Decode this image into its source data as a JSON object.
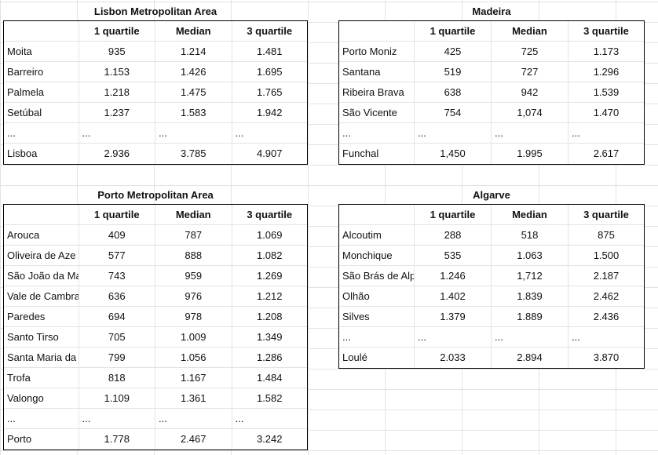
{
  "tables": [
    {
      "title": "Lisbon Metropolitan Area",
      "headers": [
        "",
        "1 quartile",
        "Median",
        "3 quartile"
      ],
      "rows": [
        [
          "Moita",
          "935",
          "1.214",
          "1.481"
        ],
        [
          "Barreiro",
          "1.153",
          "1.426",
          "1.695"
        ],
        [
          "Palmela",
          "1.218",
          "1.475",
          "1.765"
        ],
        [
          "Setúbal",
          "1.237",
          "1.583",
          "1.942"
        ],
        [
          "...",
          "...",
          "...",
          "..."
        ],
        [
          "Lisboa",
          "2.936",
          "3.785",
          "4.907"
        ]
      ]
    },
    {
      "title": "Madeira",
      "headers": [
        "",
        "1 quartile",
        "Median",
        "3 quartile"
      ],
      "rows": [
        [
          "Porto Moniz",
          "425",
          "725",
          "1.173"
        ],
        [
          "Santana",
          "519",
          "727",
          "1.296"
        ],
        [
          "Ribeira Brava",
          "638",
          "942",
          "1.539"
        ],
        [
          "São Vicente",
          "754",
          "1,074",
          "1.470"
        ],
        [
          "...",
          "...",
          "...",
          "..."
        ],
        [
          "Funchal",
          "1,450",
          "1.995",
          "2.617"
        ]
      ]
    },
    {
      "title": "Porto Metropolitan Area",
      "headers": [
        "",
        "1 quartile",
        "Median",
        "3 quartile"
      ],
      "rows": [
        [
          "Arouca",
          "409",
          "787",
          "1.069"
        ],
        [
          "Oliveira de Aze",
          "577",
          "888",
          "1.082"
        ],
        [
          "São João da Ma",
          "743",
          "959",
          "1.269"
        ],
        [
          "Vale de Cambra",
          "636",
          "976",
          "1.212"
        ],
        [
          "Paredes",
          "694",
          "978",
          "1.208"
        ],
        [
          "Santo Tirso",
          "705",
          "1.009",
          "1.349"
        ],
        [
          "Santa Maria da",
          "799",
          "1.056",
          "1.286"
        ],
        [
          "Trofa",
          "818",
          "1.167",
          "1.484"
        ],
        [
          "Valongo",
          "1.109",
          "1.361",
          "1.582"
        ],
        [
          "...",
          "...",
          "...",
          "..."
        ],
        [
          "Porto",
          "1.778",
          "2.467",
          "3.242"
        ]
      ]
    },
    {
      "title": "Algarve",
      "headers": [
        "",
        "1 quartile",
        "Median",
        "3 quartile"
      ],
      "rows": [
        [
          "Alcoutim",
          "288",
          "518",
          "875"
        ],
        [
          "Monchique",
          "535",
          "1.063",
          "1.500"
        ],
        [
          "São Brás de Alpo",
          "1.246",
          "1,712",
          "2.187"
        ],
        [
          "Olhão",
          "1.402",
          "1.839",
          "2.462"
        ],
        [
          "Silves",
          "1.379",
          "1.889",
          "2.436"
        ],
        [
          "...",
          "...",
          "...",
          "..."
        ],
        [
          "Loulé",
          "2.033",
          "2.894",
          "3.870"
        ]
      ]
    }
  ]
}
